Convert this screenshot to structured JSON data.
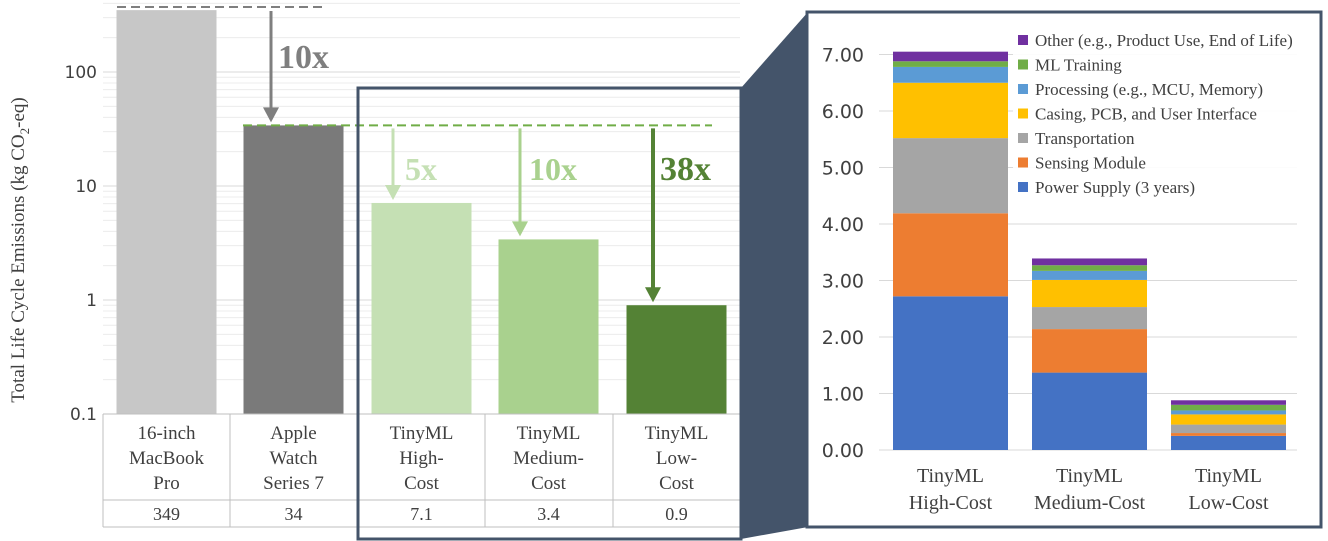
{
  "chart_data": [
    {
      "type": "bar",
      "scale": "log",
      "ylabel_parts": {
        "pre": "Total Life Cycle Emissions (kg CO",
        "sub": "2",
        "post": "-eq)"
      },
      "ylim": [
        0.1,
        400
      ],
      "ytick_values": [
        0.1,
        1,
        10,
        100
      ],
      "ytick_labels": [
        "0.1",
        "1",
        "10",
        "100"
      ],
      "categories": [
        [
          "16-inch",
          "MacBook",
          "Pro"
        ],
        [
          "Apple",
          "Watch",
          "Series 7"
        ],
        [
          "TinyML",
          "High-",
          "Cost"
        ],
        [
          "TinyML",
          "Medium-",
          "Cost"
        ],
        [
          "TinyML",
          "Low-",
          "Cost"
        ]
      ],
      "values": [
        349,
        34,
        7.1,
        3.4,
        0.9
      ],
      "value_labels": [
        "349",
        "34",
        "7.1",
        "3.4",
        "0.9"
      ],
      "bar_colors": [
        "#c7c7c7",
        "#7a7a7a",
        "#c5e0b4",
        "#a9d18e",
        "#548235"
      ],
      "annotations": [
        {
          "label": "10x",
          "from": 349,
          "to": 34,
          "bar": 1,
          "color": "#7f7f7f"
        },
        {
          "label": "5x",
          "from": 34,
          "to": 7.1,
          "bar": 2,
          "color": "#c5e0b4"
        },
        {
          "label": "10x",
          "from": 34,
          "to": 3.4,
          "bar": 3,
          "color": "#a9d18e"
        },
        {
          "label": "38x",
          "from": 34,
          "to": 0.9,
          "bar": 4,
          "color": "#548235"
        }
      ],
      "grid": true
    },
    {
      "type": "bar",
      "stacked": true,
      "ylim": [
        0,
        7.3
      ],
      "ytick_values": [
        0,
        1,
        2,
        3,
        4,
        5,
        6,
        7
      ],
      "ytick_labels": [
        "0.00",
        "1.00",
        "2.00",
        "3.00",
        "4.00",
        "5.00",
        "6.00",
        "7.00"
      ],
      "categories": [
        [
          "TinyML",
          "High-Cost"
        ],
        [
          "TinyML",
          "Medium-Cost"
        ],
        [
          "TinyML",
          "Low-Cost"
        ]
      ],
      "series": [
        {
          "name": "Power Supply (3 years)",
          "color": "#4472c4",
          "values": [
            2.72,
            1.37,
            0.25
          ]
        },
        {
          "name": "Sensing Module",
          "color": "#ed7d31",
          "values": [
            1.47,
            0.77,
            0.05
          ]
        },
        {
          "name": "Transportation",
          "color": "#a5a5a5",
          "values": [
            1.33,
            0.39,
            0.15
          ]
        },
        {
          "name": "Casing, PCB, and User Interface",
          "color": "#ffc000",
          "values": [
            0.98,
            0.48,
            0.18
          ]
        },
        {
          "name": "Processing (e.g., MCU, Memory)",
          "color": "#5b9bd5",
          "values": [
            0.28,
            0.16,
            0.07
          ]
        },
        {
          "name": "ML Training",
          "color": "#70ad47",
          "values": [
            0.1,
            0.1,
            0.1
          ]
        },
        {
          "name": "Other (e.g., Product Use, End of Life)",
          "color": "#7030a0",
          "values": [
            0.17,
            0.12,
            0.08
          ]
        }
      ],
      "legend_position": "top-right",
      "grid": true
    }
  ]
}
